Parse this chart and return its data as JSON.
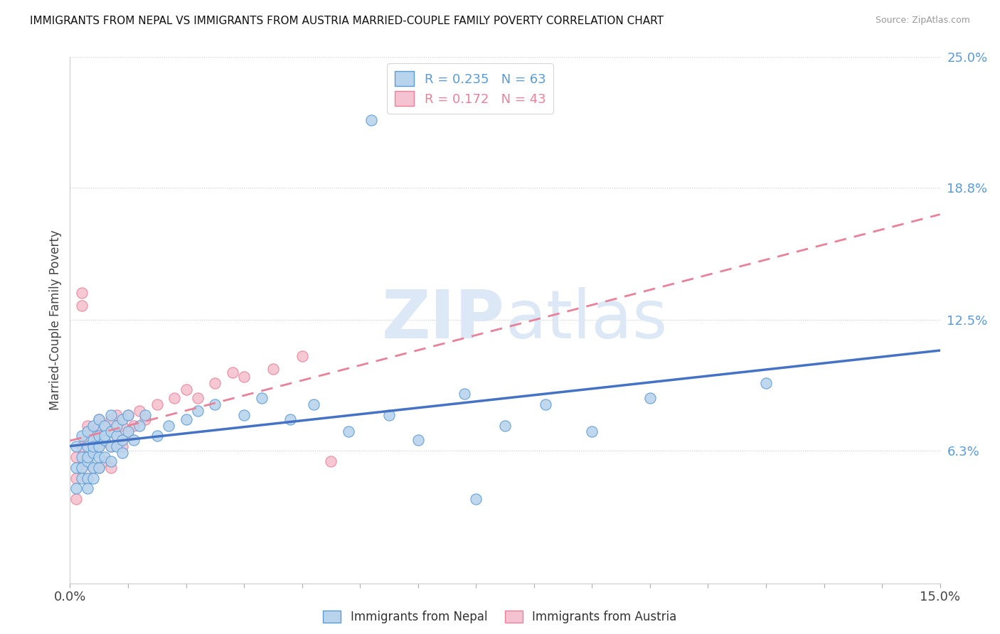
{
  "title": "IMMIGRANTS FROM NEPAL VS IMMIGRANTS FROM AUSTRIA MARRIED-COUPLE FAMILY POVERTY CORRELATION CHART",
  "source": "Source: ZipAtlas.com",
  "ylabel": "Married-Couple Family Poverty",
  "xlim": [
    0.0,
    0.15
  ],
  "ylim": [
    0.0,
    0.25
  ],
  "ytick_positions": [
    0.0,
    0.063,
    0.125,
    0.188,
    0.25
  ],
  "ytick_labels": [
    "",
    "6.3%",
    "12.5%",
    "18.8%",
    "25.0%"
  ],
  "nepal_R": 0.235,
  "nepal_N": 63,
  "austria_R": 0.172,
  "austria_N": 43,
  "nepal_color": "#b8d4ec",
  "nepal_edge_color": "#5b9bd5",
  "austria_color": "#f4c2d0",
  "austria_edge_color": "#e8829a",
  "nepal_line_color": "#4472c4",
  "austria_line_color": "#e8829a",
  "watermark_color": "#dce8f5",
  "nepal_x": [
    0.001,
    0.001,
    0.001,
    0.002,
    0.002,
    0.002,
    0.002,
    0.003,
    0.003,
    0.003,
    0.003,
    0.003,
    0.003,
    0.004,
    0.004,
    0.004,
    0.004,
    0.004,
    0.004,
    0.005,
    0.005,
    0.005,
    0.005,
    0.005,
    0.006,
    0.006,
    0.006,
    0.006,
    0.007,
    0.007,
    0.007,
    0.007,
    0.008,
    0.008,
    0.008,
    0.009,
    0.009,
    0.009,
    0.01,
    0.01,
    0.011,
    0.012,
    0.013,
    0.015,
    0.017,
    0.02,
    0.022,
    0.025,
    0.03,
    0.033,
    0.038,
    0.042,
    0.048,
    0.055,
    0.06,
    0.068,
    0.075,
    0.082,
    0.09,
    0.1,
    0.052,
    0.07,
    0.12
  ],
  "nepal_y": [
    0.055,
    0.065,
    0.045,
    0.06,
    0.055,
    0.05,
    0.07,
    0.058,
    0.065,
    0.05,
    0.072,
    0.045,
    0.06,
    0.068,
    0.055,
    0.075,
    0.062,
    0.05,
    0.065,
    0.07,
    0.055,
    0.078,
    0.06,
    0.065,
    0.068,
    0.075,
    0.06,
    0.07,
    0.072,
    0.065,
    0.08,
    0.058,
    0.07,
    0.075,
    0.065,
    0.068,
    0.078,
    0.062,
    0.072,
    0.08,
    0.068,
    0.075,
    0.08,
    0.07,
    0.075,
    0.078,
    0.082,
    0.085,
    0.08,
    0.088,
    0.078,
    0.085,
    0.072,
    0.08,
    0.068,
    0.09,
    0.075,
    0.085,
    0.072,
    0.088,
    0.22,
    0.04,
    0.095
  ],
  "austria_x": [
    0.001,
    0.001,
    0.001,
    0.002,
    0.002,
    0.002,
    0.002,
    0.003,
    0.003,
    0.003,
    0.003,
    0.004,
    0.004,
    0.004,
    0.005,
    0.005,
    0.005,
    0.005,
    0.006,
    0.006,
    0.006,
    0.007,
    0.007,
    0.007,
    0.008,
    0.008,
    0.009,
    0.009,
    0.01,
    0.01,
    0.011,
    0.012,
    0.013,
    0.015,
    0.018,
    0.02,
    0.022,
    0.025,
    0.028,
    0.03,
    0.035,
    0.04,
    0.045
  ],
  "austria_y": [
    0.05,
    0.06,
    0.04,
    0.132,
    0.138,
    0.055,
    0.065,
    0.06,
    0.075,
    0.05,
    0.068,
    0.062,
    0.072,
    0.055,
    0.065,
    0.075,
    0.055,
    0.078,
    0.068,
    0.058,
    0.075,
    0.065,
    0.078,
    0.055,
    0.07,
    0.08,
    0.065,
    0.075,
    0.07,
    0.08,
    0.075,
    0.082,
    0.078,
    0.085,
    0.088,
    0.092,
    0.088,
    0.095,
    0.1,
    0.098,
    0.102,
    0.108,
    0.058
  ]
}
